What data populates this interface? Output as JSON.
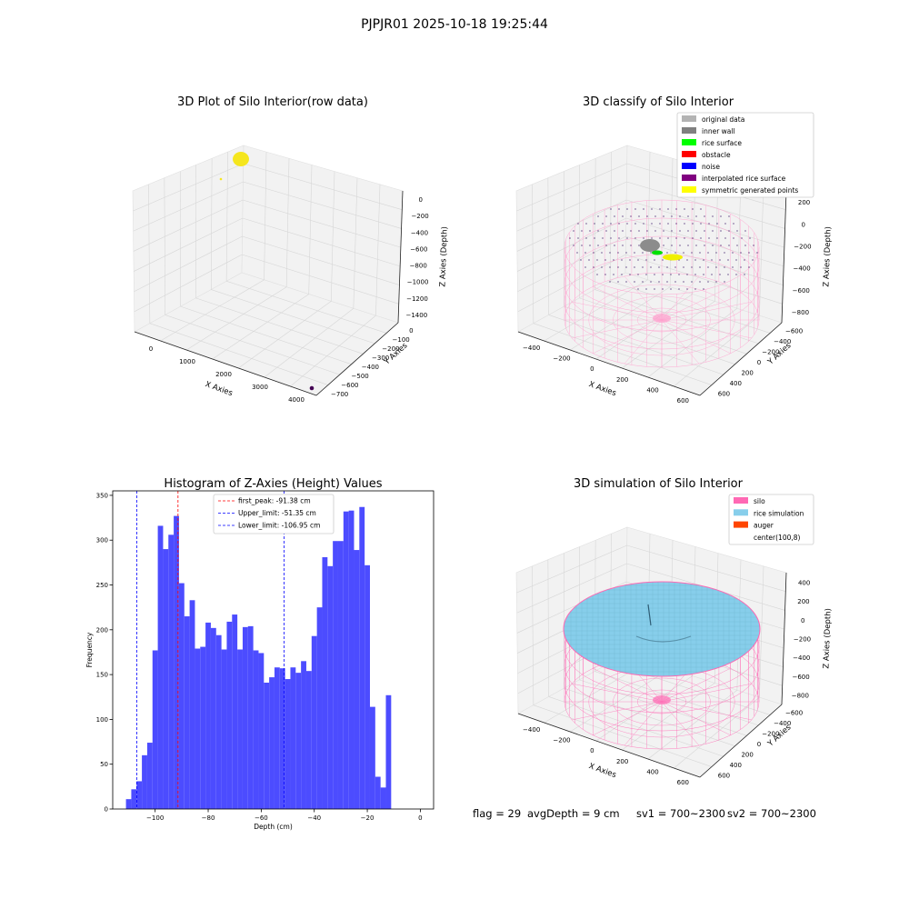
{
  "figure": {
    "suptitle": "PJPJR01 2025-10-18 19:25:44",
    "status": {
      "flag": "flag = 29",
      "avg_depth": "avgDepth = 9 cm",
      "sv1": "sv1 = 700~2300",
      "sv2": "sv2 = 700~2300"
    },
    "colors": {
      "bar": "#4c4cff",
      "first_peak": "#ff0000",
      "limit": "#0000ff",
      "pane": "#f2f2f2",
      "silo_wire": "#ff69b4",
      "rice": "#87ceeb",
      "yellow": "#f5e61e"
    }
  },
  "chart_data": [
    {
      "type": "scatter",
      "subtype": "3d",
      "title": "3D Plot of Silo Interior(row data)",
      "xlabel": "X Axies",
      "ylabel": "Y Axies",
      "zlabel": "Z Axies (Depth)",
      "x_ticks": [
        "0",
        "1000",
        "2000",
        "3000",
        "4000"
      ],
      "y_ticks": [
        "0",
        "−100",
        "−200",
        "−300",
        "−400",
        "−500",
        "−600",
        "−700"
      ],
      "z_ticks": [
        "0",
        "−200",
        "−400",
        "−600",
        "−800",
        "−1000",
        "−1200",
        "−1400"
      ],
      "clusters": [
        {
          "name": "points near origin",
          "x": 200,
          "y": 0,
          "z": 0,
          "color": "#f5e61e"
        },
        {
          "name": "outlier",
          "x": 4200,
          "y": -680,
          "z": -1450,
          "color": "#440154"
        }
      ]
    },
    {
      "type": "scatter",
      "subtype": "3d",
      "title": "3D classify of Silo Interior",
      "xlabel": "X Axies",
      "ylabel": "Y Axies",
      "zlabel": "Z Axies (Depth)",
      "x_ticks": [
        "−400",
        "−200",
        "0",
        "200",
        "400",
        "600"
      ],
      "y_ticks": [
        "−600",
        "−400",
        "−200",
        "0",
        "200",
        "400",
        "600"
      ],
      "z_ticks": [
        "200",
        "0",
        "−200",
        "−400",
        "−600",
        "−800"
      ],
      "legend_position": "upper right",
      "legend": [
        {
          "label": "original data",
          "color": "#b3b3b3"
        },
        {
          "label": "inner wall",
          "color": "#808080"
        },
        {
          "label": "rice surface",
          "color": "#00ff00"
        },
        {
          "label": "obstacle",
          "color": "#ff0000"
        },
        {
          "label": "noise",
          "color": "#0000ff"
        },
        {
          "label": "interpolated rice surface",
          "color": "#800080"
        },
        {
          "label": "symmetric generated points",
          "color": "#ffff00"
        }
      ]
    },
    {
      "type": "bar",
      "subtype": "histogram",
      "title": "Histogram of Z-Axies (Height) Values",
      "xlabel": "Depth (cm)",
      "ylabel": "Frequency",
      "xlim": [
        -116,
        5
      ],
      "ylim": [
        0,
        355
      ],
      "x_ticks": [
        -100,
        -80,
        -60,
        -40,
        -20,
        0
      ],
      "y_ticks": [
        0,
        50,
        100,
        150,
        200,
        250,
        300,
        350
      ],
      "grid": false,
      "legend_position": "upper center",
      "bin_width": 2,
      "bin_start": -111,
      "values": [
        11,
        22,
        31,
        60,
        74,
        177,
        316,
        290,
        306,
        327,
        252,
        215,
        233,
        179,
        181,
        208,
        202,
        194,
        178,
        209,
        217,
        178,
        203,
        204,
        177,
        174,
        141,
        147,
        158,
        157,
        145,
        158,
        152,
        165,
        154,
        193,
        225,
        281,
        271,
        299,
        299,
        332,
        333,
        289,
        337,
        272,
        114,
        36,
        24,
        127
      ],
      "vlines": [
        {
          "label": "first_peak: -91.38 cm",
          "x": -91.38,
          "color": "#ff0000"
        },
        {
          "label": "Upper_limit: -51.35 cm",
          "x": -51.35,
          "color": "#0000ff"
        },
        {
          "label": "Lower_limit: -106.95 cm",
          "x": -106.95,
          "color": "#0000ff"
        }
      ]
    },
    {
      "type": "scatter",
      "subtype": "3d-surface",
      "title": "3D simulation of Silo Interior",
      "xlabel": "X Axies",
      "ylabel": "Y Axies",
      "zlabel": "Z Axies (Depth)",
      "x_ticks": [
        "−400",
        "−200",
        "0",
        "200",
        "400",
        "600"
      ],
      "y_ticks": [
        "−600",
        "−400",
        "−200",
        "0",
        "200",
        "400",
        "600"
      ],
      "z_ticks": [
        "400",
        "200",
        "0",
        "−200",
        "−400",
        "−600",
        "−800"
      ],
      "legend_position": "upper right",
      "legend": [
        {
          "label": "silo",
          "color": "#ff69b4"
        },
        {
          "label": "rice simulation",
          "color": "#87ceeb"
        },
        {
          "label": "auger",
          "color": "#ff4500"
        },
        {
          "label": "center(100,8)",
          "color": "#ffffff"
        }
      ]
    }
  ]
}
